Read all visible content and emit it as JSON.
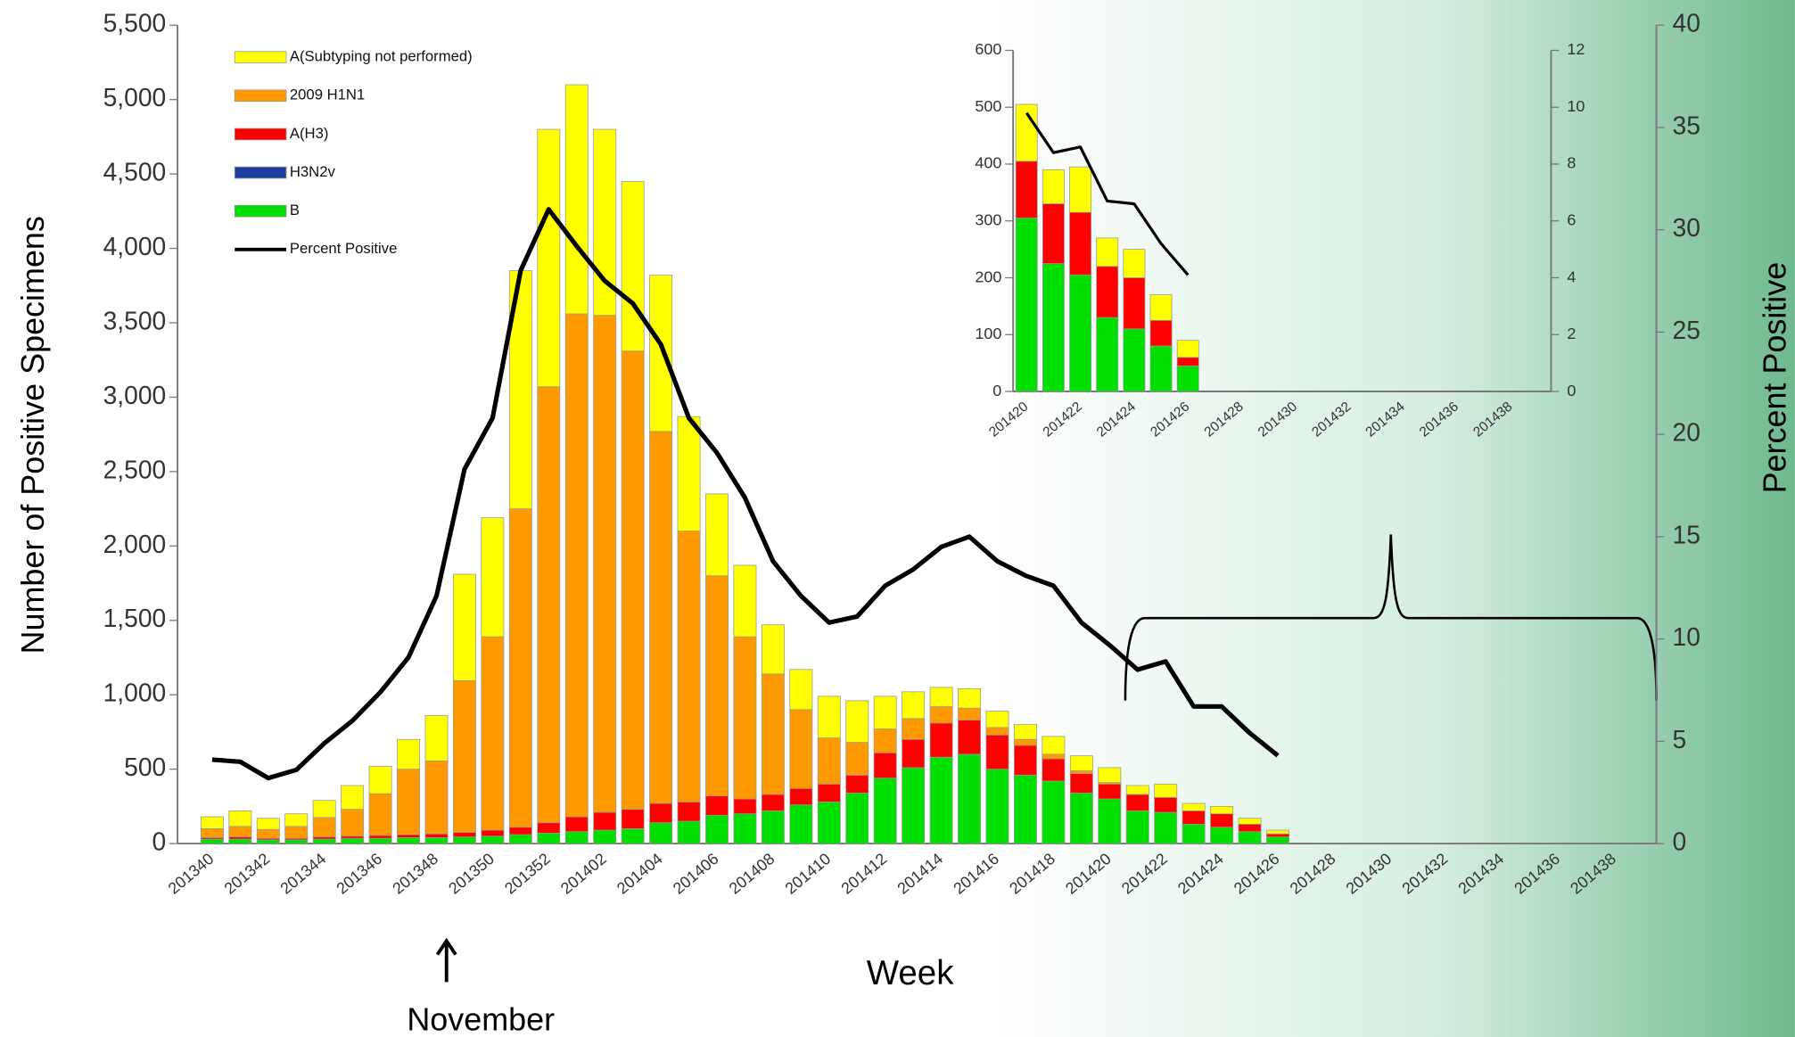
{
  "chart_data": [
    {
      "type": "bar",
      "stacked": true,
      "legend": "upper left",
      "x_label": "Week",
      "y_label": "Number of Positive Specimens",
      "y2_label": "Percent Positive",
      "annotation": "November",
      "categories": [
        "201340",
        null,
        "201342",
        null,
        "201344",
        null,
        "201346",
        null,
        "201348",
        null,
        "201350",
        null,
        "201352",
        null,
        "201402",
        null,
        "201404",
        null,
        "201406",
        null,
        "201408",
        null,
        "201410",
        null,
        "201412",
        null,
        "201414",
        null,
        "201416",
        null,
        "201418",
        null,
        "201420",
        null,
        "201422",
        null,
        "201424",
        null,
        "201426",
        null,
        "201428",
        null,
        "201430",
        null,
        "201432",
        null,
        "201434",
        null,
        "201436",
        null,
        "201438",
        null
      ],
      "series": [
        {
          "name": "A(Subtyping not performed)",
          "color": "#ffff00",
          "values": [
            80,
            105,
            75,
            85,
            115,
            160,
            185,
            200,
            305,
            715,
            800,
            1600,
            1730,
            1540,
            1250,
            1140,
            1050,
            770,
            550,
            480,
            330,
            270,
            280,
            280,
            220,
            180,
            130,
            130,
            110,
            100,
            120,
            100,
            100,
            60,
            90,
            50,
            50,
            40,
            25,
            null,
            null,
            null,
            null,
            null,
            null,
            null,
            null,
            null,
            null,
            null,
            null,
            null
          ]
        },
        {
          "name": "2009 H1N1",
          "color": "#ff9900",
          "values": [
            60,
            70,
            60,
            80,
            130,
            180,
            280,
            440,
            490,
            1020,
            1300,
            2140,
            2930,
            3380,
            3340,
            3080,
            2500,
            1820,
            1480,
            1090,
            810,
            530,
            310,
            220,
            160,
            140,
            110,
            80,
            50,
            40,
            30,
            20,
            10,
            0,
            0,
            0,
            0,
            0,
            0,
            null,
            null,
            null,
            null,
            null,
            null,
            null,
            null,
            null,
            null,
            null,
            null,
            null
          ]
        },
        {
          "name": "A(H3)",
          "color": "#ff0000",
          "values": [
            10,
            15,
            10,
            10,
            15,
            15,
            20,
            20,
            25,
            30,
            40,
            50,
            70,
            100,
            120,
            130,
            130,
            130,
            130,
            100,
            110,
            110,
            120,
            120,
            170,
            190,
            230,
            230,
            230,
            200,
            150,
            130,
            100,
            110,
            100,
            90,
            90,
            50,
            20,
            null,
            null,
            null,
            null,
            null,
            null,
            null,
            null,
            null,
            null,
            null,
            null,
            null
          ]
        },
        {
          "name": "H3N2v",
          "color": "#1f3f9f",
          "values": [
            0,
            0,
            0,
            0,
            0,
            0,
            0,
            0,
            0,
            0,
            0,
            0,
            0,
            0,
            0,
            0,
            0,
            0,
            0,
            0,
            0,
            0,
            0,
            0,
            0,
            0,
            0,
            0,
            0,
            0,
            0,
            0,
            0,
            0,
            0,
            0,
            0,
            0,
            0,
            null,
            null,
            null,
            null,
            null,
            null,
            null,
            null,
            null,
            null,
            null,
            null,
            null
          ]
        },
        {
          "name": "B",
          "color": "#00e000",
          "values": [
            30,
            30,
            25,
            25,
            30,
            35,
            35,
            40,
            40,
            45,
            50,
            60,
            70,
            80,
            90,
            100,
            140,
            150,
            190,
            200,
            220,
            260,
            280,
            340,
            440,
            510,
            580,
            600,
            500,
            460,
            420,
            340,
            300,
            220,
            210,
            130,
            110,
            80,
            45,
            null,
            null,
            null,
            null,
            null,
            null,
            null,
            null,
            null,
            null,
            null,
            null,
            null
          ]
        },
        {
          "name": "Percent Positive",
          "color": "#000000",
          "axis": "y2",
          "values": [
            4.1,
            4.0,
            3.2,
            3.6,
            4.9,
            6,
            7.4,
            9.1,
            12.1,
            18.3,
            20.8,
            28,
            31,
            29.2,
            27.5,
            26.4,
            24.4,
            20.8,
            19.1,
            16.9,
            13.8,
            12.1,
            10.8,
            11.1,
            12.6,
            13.4,
            14.5,
            15,
            13.8,
            13.1,
            12.6,
            10.8,
            9.7,
            8.5,
            8.9,
            6.7,
            6.7,
            5.4,
            4.3,
            null,
            null,
            null,
            null,
            null,
            null,
            null,
            null,
            null,
            null,
            null,
            null,
            null
          ]
        }
      ],
      "ylim": [
        0,
        5500
      ],
      "yticks": [
        0,
        500,
        {
          "value": 1000,
          "label": "1,000"
        },
        {
          "value": 1500,
          "label": "1,500"
        },
        {
          "value": 2000,
          "label": "2,000"
        },
        {
          "value": 2500,
          "label": "2,500"
        },
        {
          "value": 3000,
          "label": "3,000"
        },
        {
          "value": 3500,
          "label": "3,500"
        },
        {
          "value": 4000,
          "label": "4,000"
        },
        {
          "value": 4500,
          "label": "4,500"
        },
        {
          "value": 5000,
          "label": "5,000"
        },
        {
          "value": 5500,
          "label": "5,500"
        }
      ],
      "y2lim": [
        0,
        40
      ],
      "y2ticks": [
        0,
        5,
        10,
        15,
        20,
        25,
        30,
        35,
        40
      ]
    },
    {
      "type": "bar",
      "stacked": true,
      "categories": [
        "201420",
        null,
        "201422",
        null,
        "201424",
        null,
        "201426",
        null,
        "201428",
        null,
        "201430",
        null,
        "201432",
        null,
        "201434",
        null,
        "201436",
        null,
        "201438",
        null
      ],
      "series": [
        {
          "color": "#ffff00",
          "values": [
            100,
            60,
            80,
            50,
            50,
            45,
            30,
            null,
            null,
            null,
            null,
            null,
            null,
            null,
            null,
            null,
            null,
            null,
            null,
            null
          ]
        },
        {
          "color": "#ff0000",
          "values": [
            100,
            105,
            110,
            90,
            90,
            45,
            15,
            null,
            null,
            null,
            null,
            null,
            null,
            null,
            null,
            null,
            null,
            null,
            null,
            null
          ]
        },
        {
          "color": "#00e000",
          "values": [
            305,
            225,
            205,
            130,
            110,
            80,
            45,
            null,
            null,
            null,
            null,
            null,
            null,
            null,
            null,
            null,
            null,
            null,
            null,
            null
          ]
        },
        {
          "color": "#000000",
          "axis": "y2",
          "values": [
            9.8,
            8.4,
            8.6,
            6.7,
            6.6,
            5.2,
            4.1,
            null,
            null,
            null,
            null,
            null,
            null,
            null,
            null,
            null,
            null,
            null,
            null,
            null
          ]
        }
      ],
      "ylim": [
        0,
        600
      ],
      "yticks": [
        0,
        100,
        200,
        300,
        400,
        500,
        600
      ],
      "y2lim": [
        0,
        12
      ],
      "y2ticks": [
        0,
        2,
        4,
        6,
        8,
        10,
        12
      ]
    }
  ]
}
